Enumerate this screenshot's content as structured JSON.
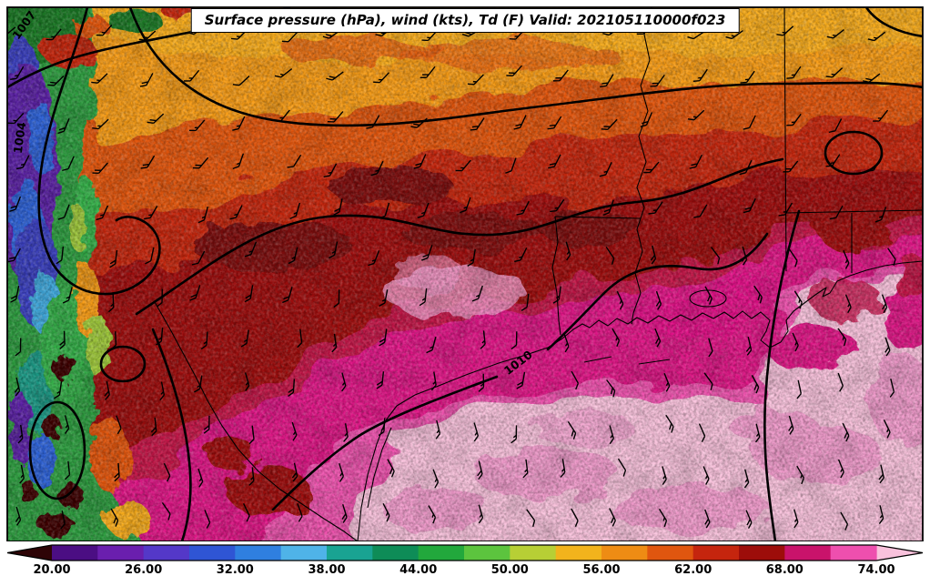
{
  "title": "Surface pressure (hPa), wind (kts), Td (F) Valid: 202105110000f023",
  "colorbar": {
    "ticks": [
      "20.00",
      "26.00",
      "32.00",
      "38.00",
      "44.00",
      "50.00",
      "56.00",
      "62.00",
      "68.00",
      "74.00"
    ],
    "tick_values": [
      20,
      26,
      32,
      38,
      44,
      50,
      56,
      62,
      68,
      74
    ],
    "min": 20,
    "max": 74,
    "segment_step_F": 3,
    "extend": "both",
    "under_color": "#2e0406",
    "over_color": "#f9c2dc",
    "segment_colors": [
      "#4b0e83",
      "#6a1fae",
      "#5438c8",
      "#2f55d4",
      "#2f7fe0",
      "#4fb3e8",
      "#19a392",
      "#0e8c57",
      "#22a83c",
      "#5cc43e",
      "#b7cf35",
      "#f2b31c",
      "#ee8c14",
      "#e0560f",
      "#c5250e",
      "#9d0d0a",
      "#c9136b",
      "#ee4fae"
    ]
  },
  "isobars": {
    "labels": [
      "1007",
      "1004",
      "1010"
    ],
    "values_hPa": [
      1007,
      1004,
      1010
    ]
  },
  "wind": {
    "units": "kts",
    "barb_description": "southerly/southeasterly 10-20 kt over the Gulf, veering southwesterly to westerly toward the north and west"
  },
  "palette": {
    "orange_top": "#f9ad1d",
    "orange": "#f79c16",
    "red_orange": "#e2570f",
    "red": "#c5250e",
    "dark_red": "#9d0d0a",
    "darker_red": "#7d0707",
    "crimson": "#c21247",
    "magenta": "#df1486",
    "bright_pink": "#ee52ae",
    "light_pink": "#f9c2dc",
    "pink_mottle": "#f09bcb",
    "green": "#2f9e3f",
    "dark_green": "#1d7a28",
    "bright_green": "#35b04a",
    "purple": "#5b21a6",
    "indigo": "#3a3fbf",
    "blue": "#2f62d6",
    "cyan": "#3fa8dc",
    "teal": "#1b9a86",
    "dark_maroon": "#3c0506",
    "olive": "#9ec73a"
  },
  "chart_data": {
    "type": "heatmap",
    "subtype": "filled-contour weather map with pressure contours and wind barbs",
    "title": "Surface pressure (hPa), wind (kts), Td (F) Valid: 202105110000f023",
    "shaded_variable": "Dewpoint temperature Td (F)",
    "contour_variable": "Surface pressure (hPa)",
    "vector_variable": "Wind (kts)",
    "valid_string": "202105110000f023",
    "colorbar_ticks": [
      20,
      26,
      32,
      38,
      44,
      50,
      56,
      62,
      68,
      74
    ],
    "colorbar_interval_F": 3,
    "colorbar_extends": "both ends arrowed",
    "pressure_contour_labels": [
      1004,
      1007,
      1010
    ],
    "legend_position": "bottom horizontal colorbar",
    "field_summary": [
      {
        "region": "western mountains (left edge strip)",
        "td_F": "below 20 to 50, highly mottled purple/blue/green with dark maroon pockets"
      },
      {
        "region": "north (top band)",
        "td_F": "50-60, orange shades"
      },
      {
        "region": "central band (Oklahoma/Arkansas into north Texas)",
        "td_F": "60-66, red to dark red"
      },
      {
        "region": "south Texas and Louisiana coastal plain",
        "td_F": "66-72, magenta to bright pink"
      },
      {
        "region": "Gulf of Mexico",
        "td_F": "72 to above 74, light pink"
      },
      {
        "region": "winds",
        "description": "south-southeasterly 10-20 kt over the Gulf, southwest-to-west to the north; 1010 hPa isobar along the coast, 1004/1007 over the western mountains"
      }
    ]
  }
}
